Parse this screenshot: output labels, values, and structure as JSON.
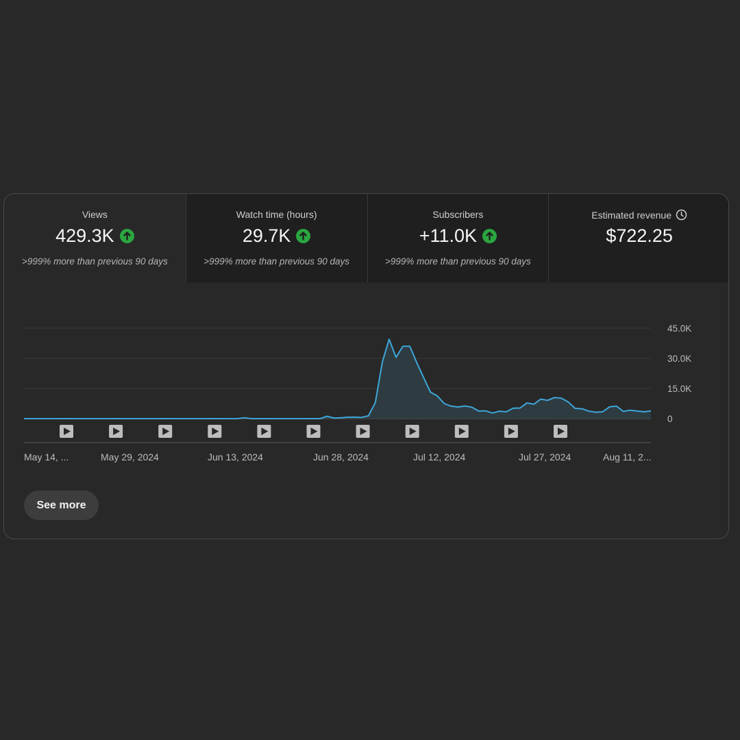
{
  "metrics": [
    {
      "title": "Views",
      "value": "429.3K",
      "sub": ">999% more than previous 90 days",
      "trend": "up"
    },
    {
      "title": "Watch time (hours)",
      "value": "29.7K",
      "sub": ">999% more than previous 90 days",
      "trend": "up"
    },
    {
      "title": "Subscribers",
      "value": "+11.0K",
      "sub": ">999% more than previous 90 days",
      "trend": "up"
    },
    {
      "title": "Estimated revenue",
      "value": "$722.25",
      "sub": "",
      "trend": "none",
      "icon": "clock-icon"
    }
  ],
  "colors": {
    "line": "#3ea6d9",
    "fill": "#2f3f46",
    "up": "#2ba640",
    "grid": "#3a3a3a"
  },
  "chart_data": {
    "type": "area",
    "ylim": [
      0,
      45000
    ],
    "y_ticks": [
      "0",
      "15.0K",
      "30.0K",
      "45.0K"
    ],
    "y_tick_values": [
      0,
      15000,
      30000,
      45000
    ],
    "x_tick_labels": [
      "May 14, ...",
      "May 29, 2024",
      "Jun 13, 2024",
      "Jun 28, 2024",
      "Jul 12, 2024",
      "Jul 27, 2024",
      "Aug 11, 2..."
    ],
    "values": [
      0,
      0,
      0,
      0,
      0,
      0,
      0,
      0,
      0,
      0,
      0,
      0,
      0,
      0,
      0,
      0,
      0,
      0,
      0,
      0,
      0,
      0,
      0,
      0,
      0,
      0,
      0,
      0,
      0,
      0,
      0,
      0,
      400,
      0,
      0,
      0,
      0,
      0,
      0,
      0,
      0,
      0,
      0,
      0,
      1200,
      300,
      400,
      700,
      800,
      600,
      1400,
      8000,
      28000,
      39500,
      30500,
      36000,
      36000,
      28000,
      20500,
      13200,
      11300,
      7500,
      6200,
      5800,
      6300,
      5700,
      3800,
      3900,
      2800,
      3700,
      3400,
      5200,
      5300,
      7800,
      7200,
      9700,
      9100,
      10500,
      10200,
      8300,
      5100,
      4900,
      3700,
      3200,
      3400,
      5900,
      6200,
      3600,
      4200,
      3800,
      3400,
      3900
    ],
    "video_markers": 11
  },
  "see_more_label": "See more"
}
